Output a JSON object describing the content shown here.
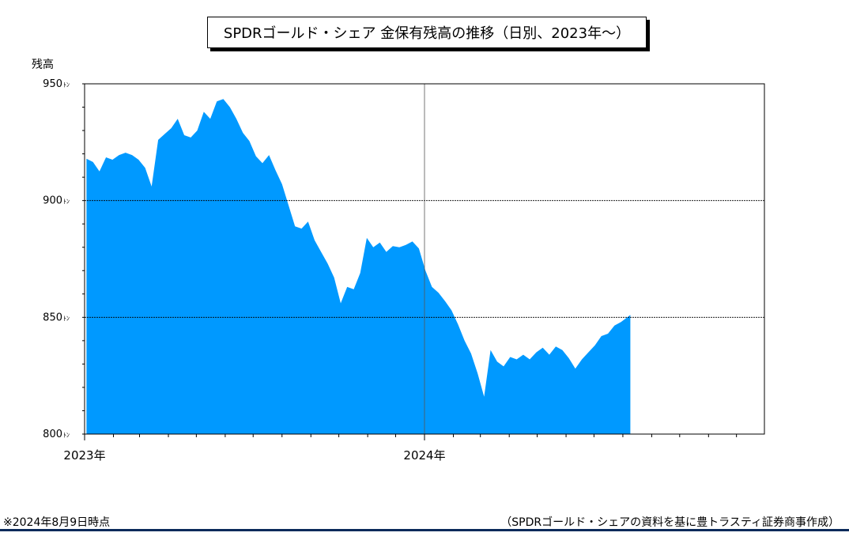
{
  "title": "SPDRゴールド・シェア 金保有残高の推移（日別、2023年～）",
  "note": "※2024年8月9日時点",
  "source": "（SPDRゴールド・シェアの資料を基に豊トラスティ証券商事作成）",
  "colors": {
    "fill": "#0099ff",
    "footer_rule": "#0b2a5b"
  },
  "chart_data": {
    "type": "area",
    "ylabel": "残高",
    "ylim": [
      800,
      950
    ],
    "y_ticks": [
      {
        "value": 800,
        "label": "800ﾄﾝ"
      },
      {
        "value": 850,
        "label": "850ﾄﾝ"
      },
      {
        "value": 900,
        "label": "900ﾄﾝ"
      },
      {
        "value": 950,
        "label": "950ﾄﾝ"
      }
    ],
    "xlim": [
      "2023-01-01",
      "2024-12-31"
    ],
    "x_labels": [
      {
        "date": "2023-01-01",
        "label": "2023年"
      },
      {
        "date": "2024-01-01",
        "label": "2024年"
      }
    ],
    "grid": "horizontal at 850 and 900 (dotted), vertical at 2024年",
    "series": [
      {
        "points": [
          [
            "2023-01-03",
            917.9
          ],
          [
            "2023-01-10",
            916.5
          ],
          [
            "2023-01-17",
            912.5
          ],
          [
            "2023-01-24",
            918.5
          ],
          [
            "2023-01-31",
            917.5
          ],
          [
            "2023-02-07",
            919.5
          ],
          [
            "2023-02-14",
            920.5
          ],
          [
            "2023-02-21",
            919.5
          ],
          [
            "2023-02-28",
            917.5
          ],
          [
            "2023-03-07",
            914.0
          ],
          [
            "2023-03-14",
            906.0
          ],
          [
            "2023-03-21",
            926.0
          ],
          [
            "2023-03-28",
            928.5
          ],
          [
            "2023-04-04",
            931.0
          ],
          [
            "2023-04-11",
            935.0
          ],
          [
            "2023-04-18",
            928.0
          ],
          [
            "2023-04-25",
            927.0
          ],
          [
            "2023-05-02",
            930.0
          ],
          [
            "2023-05-09",
            938.0
          ],
          [
            "2023-05-16",
            935.0
          ],
          [
            "2023-05-23",
            942.5
          ],
          [
            "2023-05-30",
            943.5
          ],
          [
            "2023-06-06",
            940.0
          ],
          [
            "2023-06-13",
            935.0
          ],
          [
            "2023-06-20",
            929.0
          ],
          [
            "2023-06-27",
            925.5
          ],
          [
            "2023-07-04",
            919.0
          ],
          [
            "2023-07-11",
            916.0
          ],
          [
            "2023-07-18",
            919.5
          ],
          [
            "2023-07-25",
            913.0
          ],
          [
            "2023-08-01",
            907.0
          ],
          [
            "2023-08-08",
            898.0
          ],
          [
            "2023-08-15",
            889.0
          ],
          [
            "2023-08-22",
            888.0
          ],
          [
            "2023-08-29",
            891.0
          ],
          [
            "2023-09-05",
            883.0
          ],
          [
            "2023-09-12",
            878.0
          ],
          [
            "2023-09-19",
            873.0
          ],
          [
            "2023-09-26",
            867.0
          ],
          [
            "2023-10-03",
            856.0
          ],
          [
            "2023-10-10",
            863.0
          ],
          [
            "2023-10-17",
            862.0
          ],
          [
            "2023-10-24",
            869.0
          ],
          [
            "2023-10-31",
            884.0
          ],
          [
            "2023-11-07",
            880.0
          ],
          [
            "2023-11-14",
            882.0
          ],
          [
            "2023-11-21",
            878.0
          ],
          [
            "2023-11-28",
            880.5
          ],
          [
            "2023-12-05",
            880.0
          ],
          [
            "2023-12-12",
            881.0
          ],
          [
            "2023-12-19",
            882.5
          ],
          [
            "2023-12-26",
            879.5
          ],
          [
            "2024-01-02",
            870.0
          ],
          [
            "2024-01-09",
            863.0
          ],
          [
            "2024-01-16",
            860.5
          ],
          [
            "2024-01-23",
            857.0
          ],
          [
            "2024-01-30",
            853.0
          ],
          [
            "2024-02-06",
            847.0
          ],
          [
            "2024-02-13",
            840.0
          ],
          [
            "2024-02-20",
            834.5
          ],
          [
            "2024-02-27",
            826.0
          ],
          [
            "2024-03-05",
            816.0
          ],
          [
            "2024-03-12",
            836.0
          ],
          [
            "2024-03-19",
            831.0
          ],
          [
            "2024-03-26",
            829.0
          ],
          [
            "2024-04-02",
            833.0
          ],
          [
            "2024-04-09",
            832.0
          ],
          [
            "2024-04-16",
            834.0
          ],
          [
            "2024-04-23",
            832.0
          ],
          [
            "2024-04-30",
            835.0
          ],
          [
            "2024-05-07",
            837.0
          ],
          [
            "2024-05-14",
            834.0
          ],
          [
            "2024-05-21",
            837.5
          ],
          [
            "2024-05-28",
            836.0
          ],
          [
            "2024-06-04",
            832.5
          ],
          [
            "2024-06-11",
            828.0
          ],
          [
            "2024-06-18",
            832.0
          ],
          [
            "2024-06-25",
            835.0
          ],
          [
            "2024-07-02",
            838.0
          ],
          [
            "2024-07-09",
            842.0
          ],
          [
            "2024-07-16",
            843.0
          ],
          [
            "2024-07-23",
            846.5
          ],
          [
            "2024-07-30",
            848.0
          ],
          [
            "2024-08-09",
            851.0
          ]
        ]
      }
    ]
  }
}
